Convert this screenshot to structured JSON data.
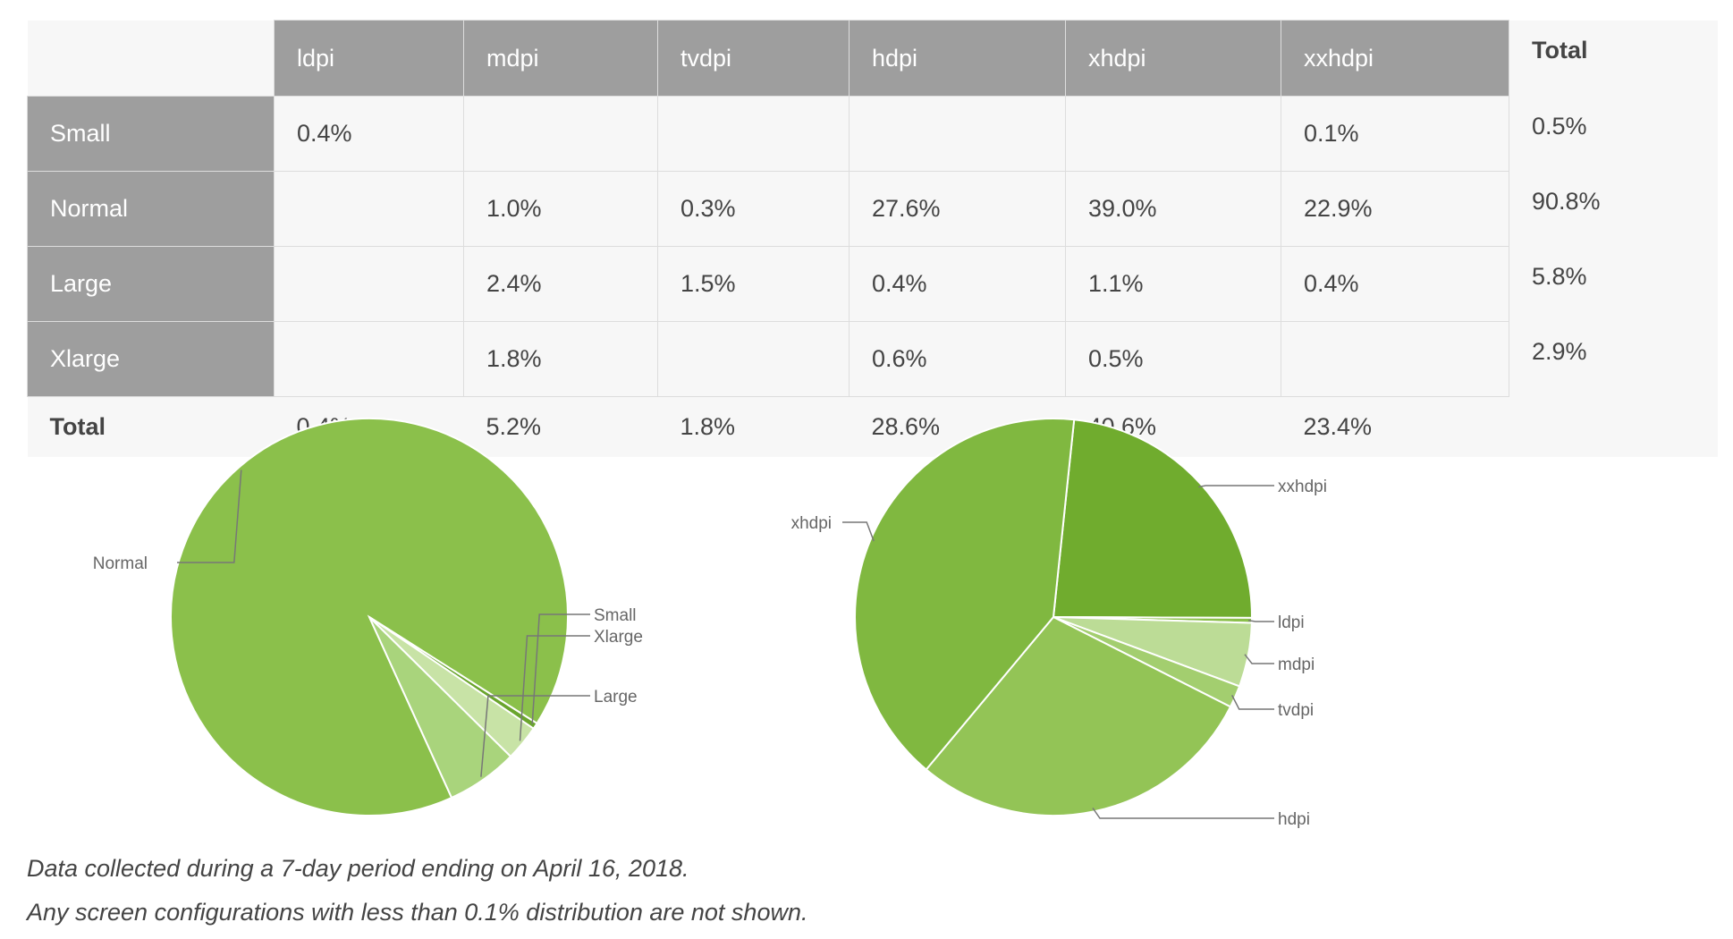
{
  "table": {
    "corner": "",
    "columns": [
      "ldpi",
      "mdpi",
      "tvdpi",
      "hdpi",
      "xhdpi",
      "xxhdpi"
    ],
    "total_label": "Total",
    "rows": [
      {
        "label": "Small",
        "cells": [
          "0.4%",
          "",
          "",
          "",
          "",
          "0.1%"
        ],
        "total": "0.5%"
      },
      {
        "label": "Normal",
        "cells": [
          "",
          "1.0%",
          "0.3%",
          "27.6%",
          "39.0%",
          "22.9%"
        ],
        "total": "90.8%"
      },
      {
        "label": "Large",
        "cells": [
          "",
          "2.4%",
          "1.5%",
          "0.4%",
          "1.1%",
          "0.4%"
        ],
        "total": "5.8%"
      },
      {
        "label": "Xlarge",
        "cells": [
          "",
          "1.8%",
          "",
          "0.6%",
          "0.5%",
          ""
        ],
        "total": "2.9%"
      }
    ],
    "column_totals": [
      "0.4%",
      "5.2%",
      "1.8%",
      "28.6%",
      "40.6%",
      "23.4%"
    ]
  },
  "chart_data": [
    {
      "type": "pie",
      "title": "",
      "slices": [
        {
          "label": "Normal",
          "value": 90.8,
          "color": "#8bc04b"
        },
        {
          "label": "Small",
          "value": 0.5,
          "color": "#6aa52d"
        },
        {
          "label": "Xlarge",
          "value": 2.9,
          "color": "#c8e3a6"
        },
        {
          "label": "Large",
          "value": 5.8,
          "color": "#a9d47c"
        }
      ]
    },
    {
      "type": "pie",
      "title": "",
      "slices": [
        {
          "label": "xxhdpi",
          "value": 23.4,
          "color": "#70ac2e"
        },
        {
          "label": "ldpi",
          "value": 0.4,
          "color": "#8bc04b"
        },
        {
          "label": "mdpi",
          "value": 5.2,
          "color": "#bcdc96"
        },
        {
          "label": "tvdpi",
          "value": 1.8,
          "color": "#a3ce6f"
        },
        {
          "label": "hdpi",
          "value": 28.6,
          "color": "#93c456"
        },
        {
          "label": "xhdpi",
          "value": 40.6,
          "color": "#80b840"
        }
      ]
    }
  ],
  "notes": {
    "line1": "Data collected during a 7-day period ending on April 16, 2018.",
    "line2": "Any screen configurations with less than 0.1% distribution are not shown."
  }
}
